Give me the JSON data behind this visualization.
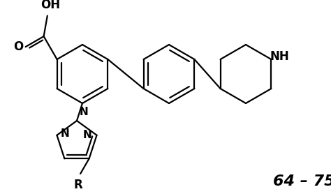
{
  "label_64_75": "64 – 75",
  "label_OH": "OH",
  "label_O": "O",
  "label_NH": "NH",
  "label_N1": "N",
  "label_N2": "N",
  "label_N3": "N",
  "label_R": "R",
  "bg_color": "#ffffff",
  "line_color": "#000000",
  "line_width": 1.6,
  "font_size_label": 11,
  "font_size_number": 14,
  "figsize": [
    4.74,
    2.78
  ],
  "dpi": 100
}
